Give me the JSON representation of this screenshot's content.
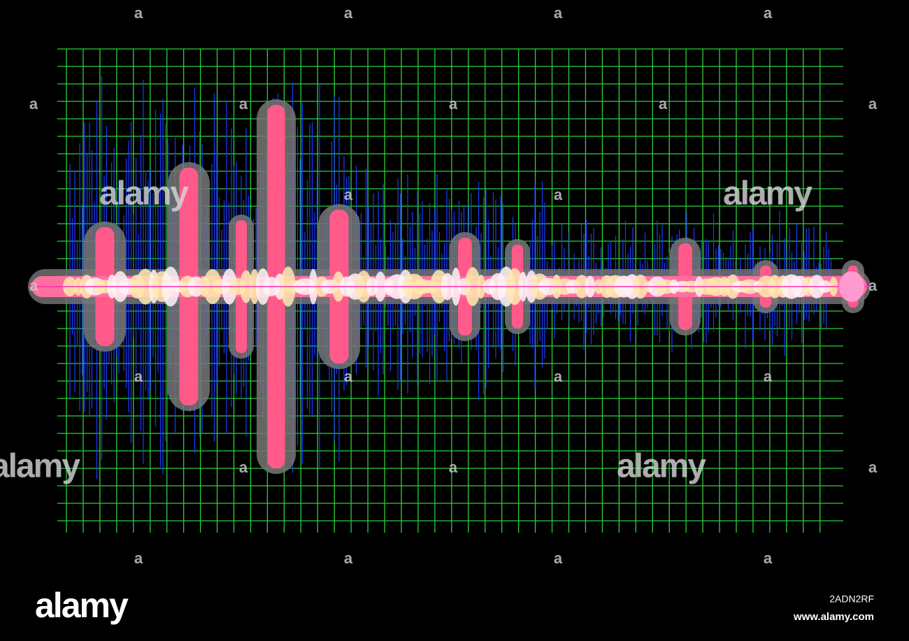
{
  "watermarks": {
    "small": [
      "a",
      "a",
      "a",
      "a",
      "a",
      "a",
      "a",
      "a",
      "a",
      "a",
      "a",
      "a",
      "a",
      "a",
      "a",
      "a",
      "a",
      "a",
      "a",
      "a",
      "a",
      "a",
      "a",
      "a"
    ],
    "large": [
      "alamy",
      "alamy",
      "alamy",
      "alamy"
    ]
  },
  "footer": {
    "logo": "alamy",
    "image_id": "2ADN2RF",
    "url": "www.alamy.com"
  }
}
